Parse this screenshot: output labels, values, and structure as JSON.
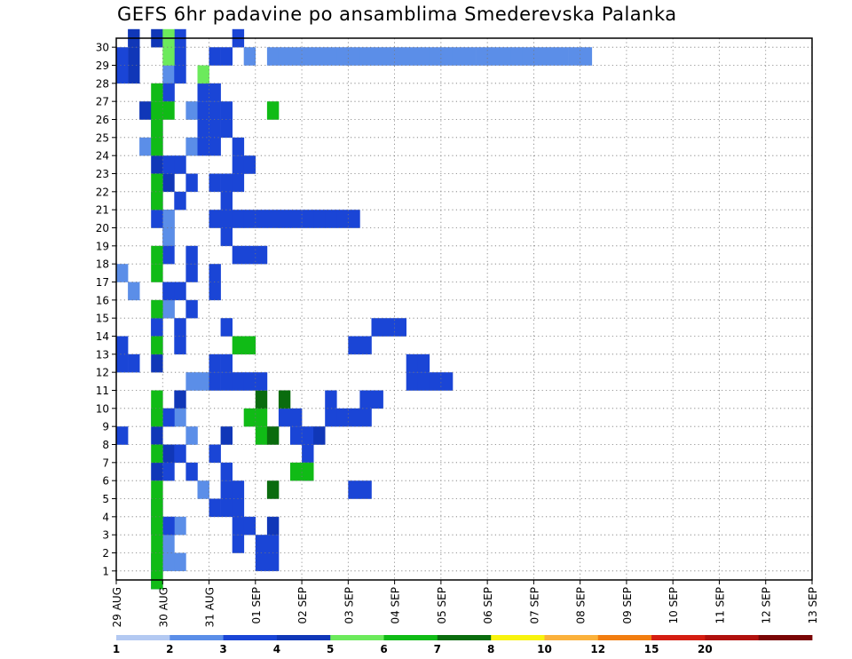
{
  "chart_data": {
    "type": "heatmap",
    "title": "GEFS 6hr padavine po ansamblima Smederevska Palanka",
    "xlabel": "",
    "ylabel": "",
    "x_tick_labels": [
      "29 AUG",
      "30 AUG",
      "31 AUG",
      "01 SEP",
      "02 SEP",
      "03 SEP",
      "04 SEP",
      "05 SEP",
      "06 SEP",
      "07 SEP",
      "08 SEP",
      "09 SEP",
      "10 SEP",
      "11 SEP",
      "12 SEP",
      "13 SEP"
    ],
    "y_tick_labels": [
      "1",
      "2",
      "3",
      "4",
      "5",
      "6",
      "7",
      "8",
      "9",
      "10",
      "11",
      "12",
      "13",
      "14",
      "15",
      "16",
      "17",
      "18",
      "19",
      "20",
      "21",
      "22",
      "23",
      "24",
      "25",
      "26",
      "27",
      "28",
      "29",
      "30"
    ],
    "y_range": [
      0,
      30
    ],
    "x_range_timesteps": [
      0,
      60
    ],
    "grid": true,
    "legend": {
      "position": "bottom",
      "levels": [
        "1",
        "2",
        "3",
        "4",
        "5",
        "6",
        "7",
        "8",
        "10",
        "12",
        "15",
        "20"
      ],
      "colors": [
        "#b3c9f2",
        "#5b8ee8",
        "#1a45d6",
        "#1037b8",
        "#6cea5c",
        "#10bb16",
        "#0a6c0e",
        "#f8f30e",
        "#fbb13b",
        "#f27d10",
        "#d51e12",
        "#b1110e",
        "#7a0606"
      ]
    },
    "cells": [
      [
        1,
        30,
        3
      ],
      [
        1,
        29,
        3
      ],
      [
        1,
        28,
        3
      ],
      [
        2,
        26,
        3
      ],
      [
        3,
        25,
        3
      ],
      [
        3,
        24,
        3
      ],
      [
        3,
        23,
        3
      ],
      [
        3,
        21,
        3
      ],
      [
        4,
        20,
        3
      ],
      [
        4,
        19,
        3
      ],
      [
        4,
        16,
        3
      ],
      [
        4,
        15,
        3
      ],
      [
        3,
        14,
        3
      ],
      [
        3,
        12,
        3
      ],
      [
        5,
        10,
        3
      ],
      [
        4,
        9,
        3
      ],
      [
        3,
        8,
        3
      ],
      [
        4,
        7,
        3
      ],
      [
        3,
        6,
        3
      ],
      [
        3,
        4,
        3
      ],
      [
        3,
        3,
        3
      ],
      [
        3,
        1,
        3
      ],
      [
        3,
        0,
        3
      ],
      [
        4,
        27,
        3
      ],
      [
        4,
        22,
        3
      ],
      [
        0,
        28,
        2
      ],
      [
        0,
        13,
        2
      ],
      [
        0,
        12,
        2
      ],
      [
        1,
        12,
        2
      ],
      [
        0,
        8,
        2
      ],
      [
        1,
        16,
        1
      ],
      [
        0,
        17,
        1
      ],
      [
        0,
        29,
        2
      ],
      [
        2,
        24,
        1
      ],
      [
        5,
        23,
        2
      ],
      [
        5,
        13,
        2
      ],
      [
        5,
        14,
        2
      ],
      [
        4,
        15,
        1
      ],
      [
        4,
        20,
        1
      ],
      [
        4,
        19,
        1
      ],
      [
        5,
        16,
        2
      ],
      [
        5,
        21,
        2
      ],
      [
        5,
        7,
        2
      ],
      [
        5,
        3,
        1
      ],
      [
        6,
        11,
        1
      ],
      [
        7,
        11,
        1
      ],
      [
        6,
        8,
        1
      ],
      [
        4,
        1,
        1
      ],
      [
        5,
        1,
        1
      ],
      [
        4,
        3,
        1
      ],
      [
        6,
        24,
        1
      ],
      [
        7,
        5,
        1
      ],
      [
        4,
        28,
        1
      ],
      [
        5,
        9,
        1
      ],
      [
        6,
        26,
        1
      ],
      [
        3,
        14,
        2
      ],
      [
        3,
        13,
        2
      ],
      [
        3,
        9,
        2
      ],
      [
        4,
        2,
        1
      ],
      [
        4,
        3,
        2
      ],
      [
        4,
        6,
        2
      ],
      [
        4,
        9,
        2
      ],
      [
        4,
        16,
        2
      ],
      [
        4,
        18,
        2
      ],
      [
        3,
        20,
        2
      ],
      [
        4,
        23,
        2
      ],
      [
        4,
        27,
        2
      ],
      [
        5,
        28,
        2
      ],
      [
        5,
        29,
        2
      ],
      [
        5,
        30,
        2
      ],
      [
        6,
        6,
        2
      ],
      [
        6,
        15,
        2
      ],
      [
        6,
        17,
        2
      ],
      [
        6,
        18,
        2
      ],
      [
        6,
        22,
        2
      ],
      [
        7,
        24,
        2
      ],
      [
        7,
        25,
        2
      ],
      [
        7,
        26,
        2
      ],
      [
        7,
        27,
        2
      ],
      [
        3,
        30,
        3
      ],
      [
        4,
        30,
        4
      ],
      [
        4,
        29,
        4
      ],
      [
        3,
        27,
        5
      ],
      [
        3,
        26,
        5
      ],
      [
        4,
        26,
        5
      ],
      [
        3,
        25,
        5
      ],
      [
        3,
        24,
        5
      ],
      [
        3,
        22,
        5
      ],
      [
        3,
        21,
        5
      ],
      [
        3,
        18,
        5
      ],
      [
        3,
        17,
        5
      ],
      [
        3,
        15,
        5
      ],
      [
        3,
        13,
        5
      ],
      [
        3,
        10,
        5
      ],
      [
        3,
        9,
        5
      ],
      [
        3,
        7,
        5
      ],
      [
        3,
        5,
        5
      ],
      [
        3,
        4,
        5
      ],
      [
        3,
        3,
        5
      ],
      [
        3,
        2,
        5
      ],
      [
        3,
        1,
        5
      ],
      [
        3,
        0,
        5
      ],
      [
        7,
        28,
        4
      ],
      [
        8,
        29,
        2
      ],
      [
        8,
        27,
        2
      ],
      [
        9,
        29,
        2
      ],
      [
        10,
        30,
        2
      ],
      [
        8,
        26,
        2
      ],
      [
        9,
        26,
        2
      ],
      [
        8,
        25,
        2
      ],
      [
        9,
        25,
        2
      ],
      [
        8,
        24,
        2
      ],
      [
        10,
        24,
        2
      ],
      [
        10,
        23,
        2
      ],
      [
        11,
        23,
        2
      ],
      [
        8,
        22,
        2
      ],
      [
        9,
        22,
        2
      ],
      [
        10,
        22,
        2
      ],
      [
        9,
        21,
        2
      ],
      [
        9,
        20,
        2
      ],
      [
        9,
        19,
        2
      ],
      [
        11,
        18,
        2
      ],
      [
        10,
        18,
        2
      ],
      [
        12,
        18,
        2
      ],
      [
        8,
        17,
        2
      ],
      [
        8,
        16,
        2
      ],
      [
        9,
        14,
        2
      ],
      [
        8,
        12,
        2
      ],
      [
        9,
        12,
        2
      ],
      [
        9,
        8,
        3
      ],
      [
        8,
        7,
        2
      ],
      [
        9,
        6,
        2
      ],
      [
        9,
        5,
        2
      ],
      [
        10,
        5,
        2
      ],
      [
        8,
        4,
        2
      ],
      [
        9,
        4,
        2
      ],
      [
        10,
        4,
        2
      ],
      [
        10,
        3,
        2
      ],
      [
        11,
        3,
        2
      ],
      [
        10,
        2,
        2
      ],
      [
        12,
        2,
        2
      ],
      [
        12,
        1,
        2
      ],
      [
        13,
        1,
        2
      ],
      [
        13,
        2,
        2
      ],
      [
        13,
        3,
        3
      ],
      [
        14,
        9,
        2
      ],
      [
        15,
        8,
        2
      ],
      [
        15,
        9,
        2
      ],
      [
        16,
        6,
        2
      ],
      [
        16,
        7,
        2
      ],
      [
        16,
        8,
        2
      ],
      [
        17,
        8,
        3
      ],
      [
        18,
        10,
        2
      ],
      [
        18,
        9,
        2
      ],
      [
        19,
        9,
        2
      ],
      [
        20,
        9,
        2
      ],
      [
        21,
        10,
        2
      ],
      [
        22,
        10,
        2
      ],
      [
        21,
        9,
        2
      ],
      [
        20,
        5,
        2
      ],
      [
        21,
        5,
        2
      ],
      [
        20,
        13,
        2
      ],
      [
        21,
        13,
        2
      ],
      [
        22,
        14,
        2
      ],
      [
        23,
        14,
        2
      ],
      [
        25,
        12,
        2
      ],
      [
        25,
        11,
        2
      ],
      [
        26,
        11,
        2
      ],
      [
        27,
        11,
        2
      ],
      [
        28,
        11,
        2
      ],
      [
        24,
        14,
        2
      ],
      [
        26,
        12,
        2
      ],
      [
        11,
        9,
        5
      ],
      [
        12,
        9,
        5
      ],
      [
        12,
        8,
        5
      ],
      [
        13,
        8,
        6
      ],
      [
        10,
        13,
        5
      ],
      [
        11,
        13,
        5
      ],
      [
        15,
        6,
        5
      ],
      [
        16,
        6,
        5
      ],
      [
        13,
        5,
        6
      ],
      [
        13,
        26,
        5
      ],
      [
        12,
        10,
        6
      ],
      [
        14,
        10,
        6
      ],
      [
        8,
        11,
        2
      ],
      [
        9,
        11,
        2
      ],
      [
        10,
        11,
        2
      ],
      [
        11,
        11,
        2
      ],
      [
        12,
        11,
        2
      ],
      [
        8,
        20,
        2
      ],
      [
        9,
        20,
        2
      ],
      [
        10,
        20,
        2
      ],
      [
        11,
        20,
        2
      ],
      [
        12,
        20,
        2
      ],
      [
        13,
        20,
        2
      ],
      [
        14,
        20,
        2
      ],
      [
        15,
        20,
        2
      ],
      [
        16,
        20,
        2
      ],
      [
        17,
        20,
        2
      ],
      [
        18,
        20,
        2
      ],
      [
        19,
        20,
        2
      ],
      [
        20,
        20,
        2
      ],
      [
        11,
        29,
        1
      ],
      [
        13,
        29,
        1
      ],
      [
        14,
        29,
        1
      ],
      [
        15,
        29,
        1
      ],
      [
        16,
        29,
        1
      ],
      [
        17,
        29,
        1
      ],
      [
        18,
        29,
        1
      ],
      [
        19,
        29,
        1
      ],
      [
        20,
        29,
        1
      ],
      [
        21,
        29,
        1
      ],
      [
        22,
        29,
        1
      ],
      [
        23,
        29,
        1
      ],
      [
        24,
        29,
        1
      ],
      [
        25,
        29,
        1
      ],
      [
        26,
        29,
        1
      ],
      [
        27,
        29,
        1
      ],
      [
        28,
        29,
        1
      ],
      [
        29,
        29,
        1
      ],
      [
        30,
        29,
        1
      ],
      [
        31,
        29,
        1
      ],
      [
        32,
        29,
        1
      ],
      [
        33,
        29,
        1
      ],
      [
        34,
        29,
        1
      ],
      [
        35,
        29,
        1
      ],
      [
        36,
        29,
        1
      ],
      [
        37,
        29,
        1
      ],
      [
        38,
        29,
        1
      ],
      [
        39,
        29,
        1
      ],
      [
        40,
        29,
        1
      ]
    ]
  }
}
